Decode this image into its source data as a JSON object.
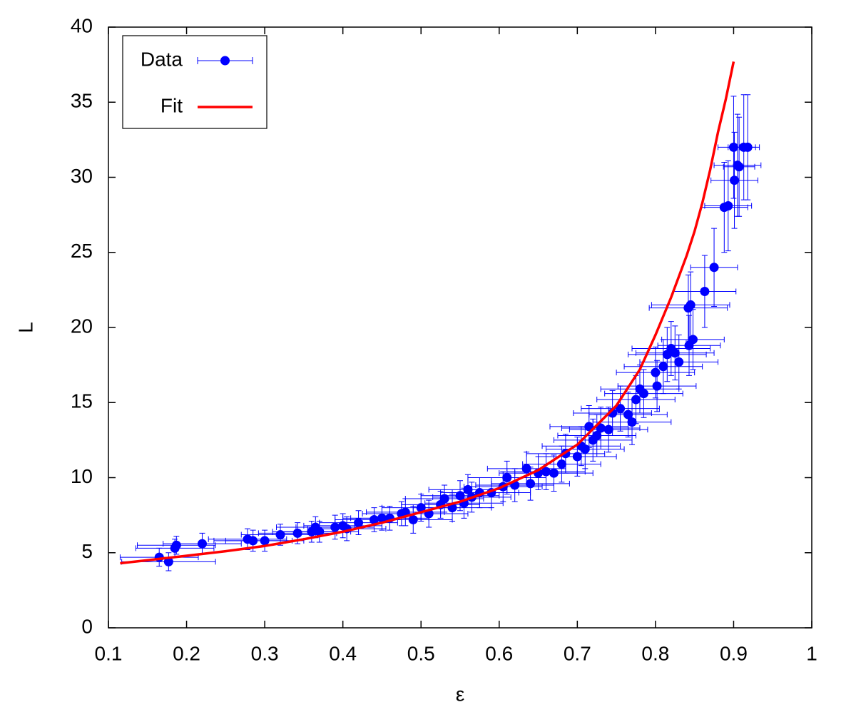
{
  "chart_data": {
    "type": "scatter",
    "xlabel": "ε",
    "ylabel": "L",
    "xlim": [
      0.1,
      1
    ],
    "ylim": [
      0,
      40
    ],
    "xticks": [
      0.1,
      0.2,
      0.3,
      0.4,
      0.5,
      0.6,
      0.7,
      0.8,
      0.9,
      1
    ],
    "yticks": [
      0,
      5,
      10,
      15,
      20,
      25,
      30,
      35,
      40
    ],
    "legend": "upper left",
    "series": [
      {
        "name": "Data",
        "color": "#0000ff",
        "mode": "errorbar",
        "x": [
          0.165,
          0.177,
          0.185,
          0.187,
          0.22,
          0.278,
          0.285,
          0.3,
          0.32,
          0.342,
          0.36,
          0.365,
          0.37,
          0.39,
          0.4,
          0.405,
          0.42,
          0.44,
          0.45,
          0.46,
          0.475,
          0.48,
          0.49,
          0.5,
          0.51,
          0.525,
          0.53,
          0.54,
          0.55,
          0.555,
          0.56,
          0.565,
          0.575,
          0.59,
          0.605,
          0.61,
          0.62,
          0.635,
          0.64,
          0.65,
          0.66,
          0.67,
          0.68,
          0.685,
          0.7,
          0.705,
          0.71,
          0.715,
          0.72,
          0.725,
          0.73,
          0.74,
          0.745,
          0.755,
          0.765,
          0.77,
          0.775,
          0.78,
          0.785,
          0.8,
          0.802,
          0.81,
          0.815,
          0.82,
          0.825,
          0.83,
          0.842,
          0.845,
          0.843,
          0.848,
          0.863,
          0.875,
          0.888,
          0.893,
          0.9,
          0.901,
          0.905,
          0.913,
          0.918,
          0.907
        ],
        "values": [
          4.7,
          4.4,
          5.3,
          5.5,
          5.6,
          5.9,
          5.8,
          5.8,
          6.2,
          6.3,
          6.4,
          6.7,
          6.4,
          6.7,
          6.8,
          6.6,
          7.0,
          7.2,
          7.3,
          7.3,
          7.6,
          7.7,
          7.2,
          8.0,
          7.6,
          8.2,
          8.6,
          8.0,
          8.8,
          8.3,
          9.2,
          8.7,
          9.0,
          9.0,
          9.4,
          10.0,
          9.5,
          10.6,
          9.6,
          10.3,
          10.4,
          10.3,
          10.9,
          11.6,
          11.4,
          12.1,
          11.9,
          13.4,
          12.5,
          12.8,
          13.3,
          13.2,
          14.3,
          14.6,
          14.2,
          13.7,
          15.2,
          15.9,
          15.6,
          17.0,
          16.1,
          17.4,
          18.2,
          18.6,
          18.3,
          17.7,
          21.3,
          21.5,
          18.8,
          19.2,
          22.4,
          24.0,
          28.0,
          28.1,
          32.0,
          29.8,
          30.8,
          32.0,
          32.0,
          30.7
        ],
        "xerr": [
          0.05,
          0.06,
          0.05,
          0.05,
          0.05,
          0.05,
          0.05,
          0.05,
          0.05,
          0.05,
          0.05,
          0.05,
          0.05,
          0.05,
          0.05,
          0.05,
          0.05,
          0.05,
          0.05,
          0.05,
          0.05,
          0.05,
          0.05,
          0.05,
          0.05,
          0.05,
          0.05,
          0.05,
          0.05,
          0.05,
          0.05,
          0.05,
          0.05,
          0.05,
          0.05,
          0.05,
          0.05,
          0.05,
          0.05,
          0.05,
          0.05,
          0.05,
          0.05,
          0.05,
          0.05,
          0.05,
          0.05,
          0.05,
          0.05,
          0.05,
          0.05,
          0.05,
          0.05,
          0.05,
          0.05,
          0.05,
          0.05,
          0.05,
          0.05,
          0.05,
          0.05,
          0.05,
          0.05,
          0.05,
          0.05,
          0.05,
          0.05,
          0.05,
          0.04,
          0.04,
          0.04,
          0.03,
          0.03,
          0.03,
          0.02,
          0.03,
          0.03,
          0.02,
          0.01,
          0.02
        ],
        "yerr": [
          0.6,
          0.6,
          0.6,
          0.6,
          0.7,
          0.7,
          0.7,
          0.7,
          0.7,
          0.7,
          0.7,
          0.7,
          0.7,
          0.8,
          0.8,
          0.8,
          0.8,
          0.8,
          0.8,
          0.8,
          0.8,
          0.9,
          0.9,
          0.9,
          0.9,
          0.9,
          0.9,
          0.9,
          1.0,
          1.0,
          1.0,
          1.0,
          1.0,
          1.0,
          1.0,
          1.1,
          1.1,
          1.1,
          1.1,
          1.1,
          1.2,
          1.2,
          1.2,
          1.3,
          1.3,
          1.3,
          1.3,
          1.4,
          1.4,
          1.4,
          1.4,
          1.5,
          1.5,
          1.5,
          1.5,
          1.5,
          1.6,
          1.6,
          1.6,
          1.7,
          1.7,
          1.8,
          1.8,
          1.8,
          1.8,
          1.8,
          2.2,
          2.2,
          2.0,
          2.0,
          2.4,
          2.6,
          3.0,
          3.0,
          3.4,
          3.2,
          3.4,
          3.5,
          3.5,
          3.3
        ]
      },
      {
        "name": "Fit",
        "color": "#ff0000",
        "mode": "line",
        "x": [
          0.115,
          0.15,
          0.2,
          0.25,
          0.3,
          0.35,
          0.4,
          0.45,
          0.5,
          0.55,
          0.6,
          0.65,
          0.7,
          0.75,
          0.78,
          0.8,
          0.82,
          0.84,
          0.85,
          0.86,
          0.87,
          0.88,
          0.89,
          0.9
        ],
        "values": [
          4.3,
          4.5,
          4.8,
          5.1,
          5.45,
          5.9,
          6.4,
          7.0,
          7.7,
          8.4,
          9.3,
          10.5,
          12.2,
          14.8,
          17.2,
          19.5,
          22.0,
          24.8,
          26.4,
          28.3,
          30.5,
          33.0,
          35.2,
          37.7
        ]
      }
    ]
  }
}
